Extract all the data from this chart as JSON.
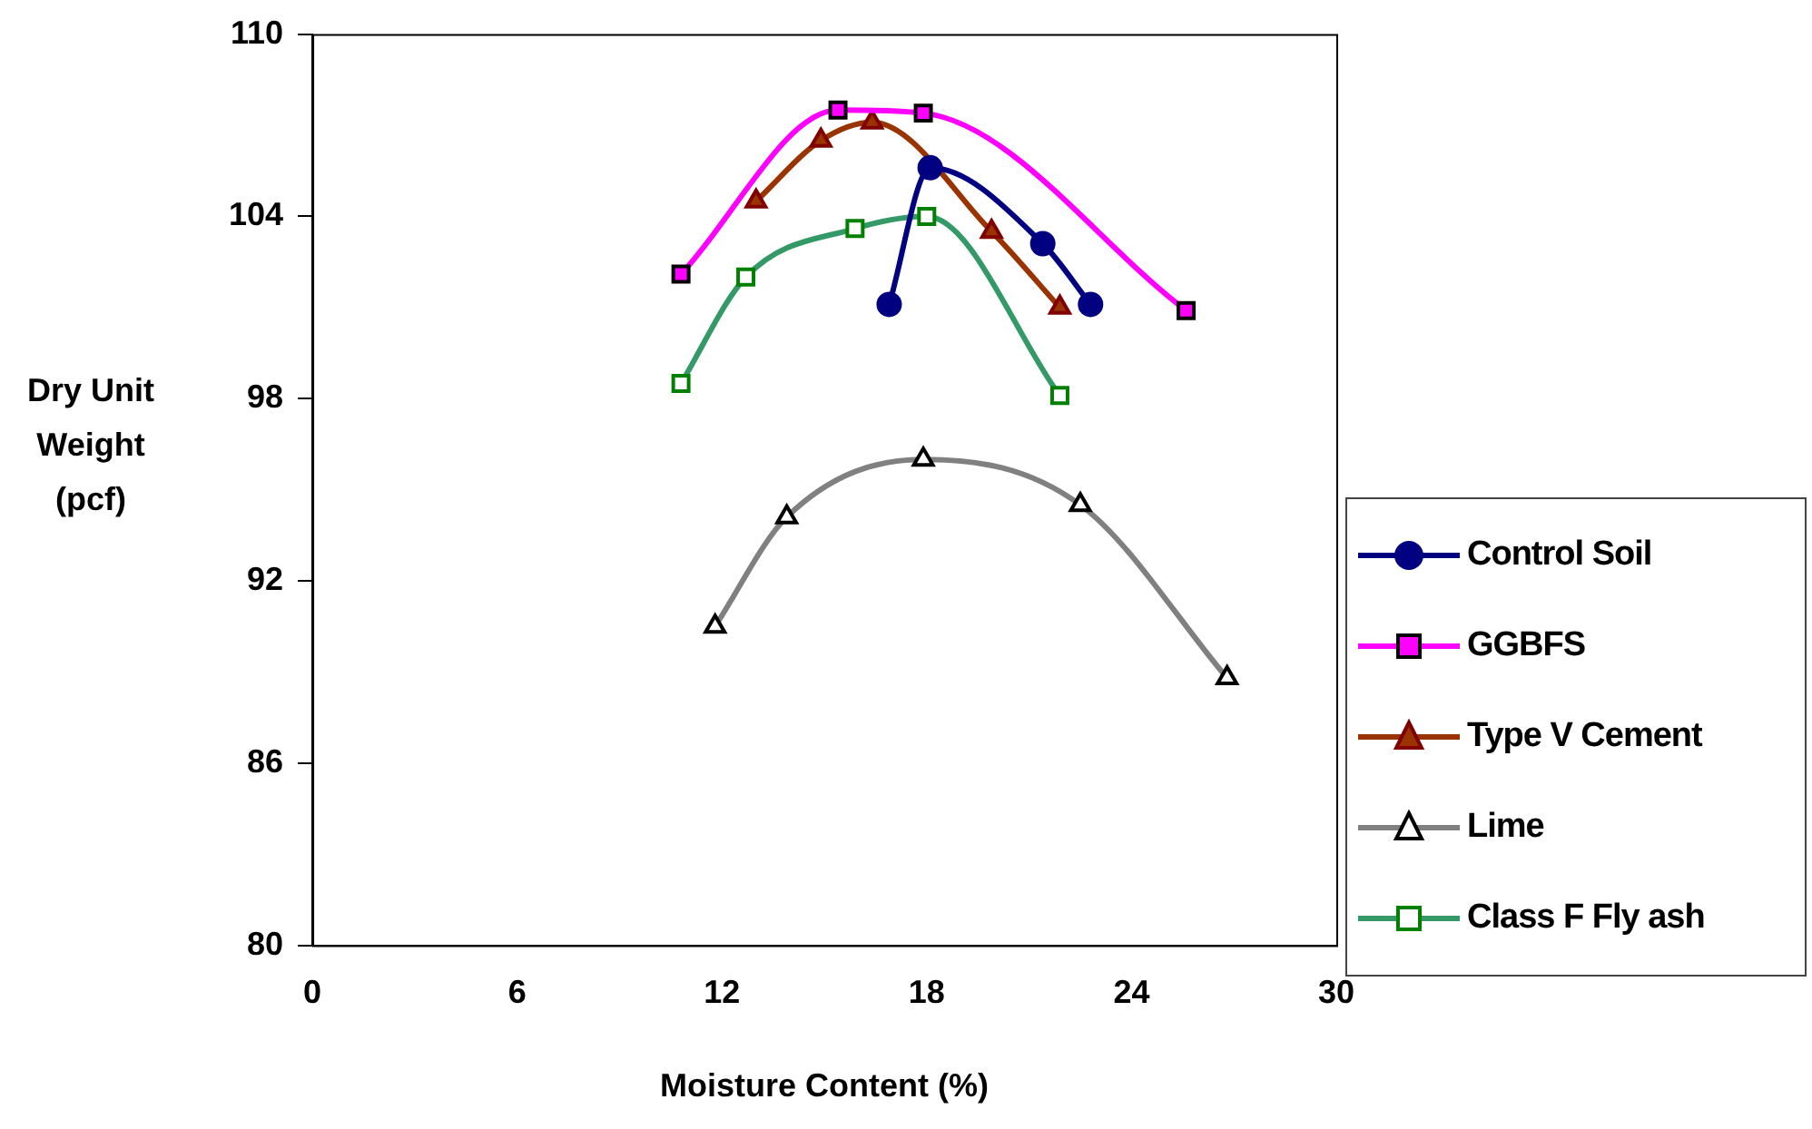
{
  "chart_data": {
    "type": "line",
    "xlabel": "Moisture Content (%)",
    "ylabel": "Dry Unit Weight (pcf)",
    "xlim": [
      0,
      30
    ],
    "xticks": [
      0,
      6,
      12,
      18,
      24,
      30
    ],
    "ylim": [
      80,
      110
    ],
    "yticks": [
      80,
      86,
      92,
      98,
      104,
      110
    ],
    "grid": false,
    "legend": "right",
    "series": [
      {
        "name": "Control Soil",
        "color": "#000080",
        "marker": "circle",
        "x": [
          16.9,
          18.1,
          21.4,
          22.8
        ],
        "values": [
          101.1,
          105.6,
          103.1,
          101.1
        ]
      },
      {
        "name": "GGBFS",
        "color": "#ff00ff",
        "marker": "square",
        "x": [
          10.8,
          15.4,
          17.9,
          25.6
        ],
        "values": [
          102.1,
          107.5,
          107.4,
          100.9
        ]
      },
      {
        "name": "Type V Cement",
        "color": "#993300",
        "marker": "triangle",
        "x": [
          13.0,
          14.9,
          16.4,
          19.9,
          21.9
        ],
        "values": [
          104.5,
          106.5,
          107.1,
          103.5,
          101.0
        ]
      },
      {
        "name": "Lime",
        "color": "#808080",
        "marker": "triangle",
        "x": [
          11.8,
          13.9,
          17.9,
          22.5,
          26.8
        ],
        "values": [
          90.5,
          94.1,
          96.0,
          94.5,
          88.8
        ]
      },
      {
        "name": "Class F Fly ash",
        "color": "#339966",
        "marker": "square",
        "x": [
          10.8,
          12.7,
          15.9,
          18.0,
          21.9
        ],
        "values": [
          98.5,
          102.0,
          103.6,
          104.0,
          98.1
        ]
      }
    ]
  }
}
